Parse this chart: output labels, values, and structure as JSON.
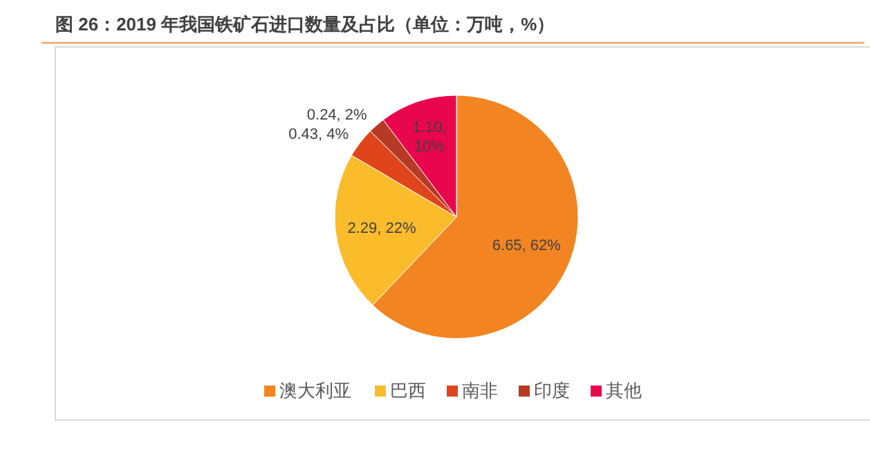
{
  "chart_data": {
    "type": "pie",
    "title": "图 26：2019 年我国铁矿石进口数量及占比（单位：万吨，%）",
    "categories": [
      "澳大利亚",
      "巴西",
      "南非",
      "印度",
      "其他"
    ],
    "values": [
      6.65,
      2.29,
      0.43,
      0.24,
      1.1
    ],
    "colors": [
      "#f28522",
      "#fbbc2c",
      "#e0441b",
      "#b73a24",
      "#e8064f"
    ],
    "value_labels": [
      "6.65, 62%",
      "2.29, 22%",
      "0.43, 4%",
      "0.24, 2%",
      "1.10, 10%"
    ],
    "legend": "bottom"
  }
}
